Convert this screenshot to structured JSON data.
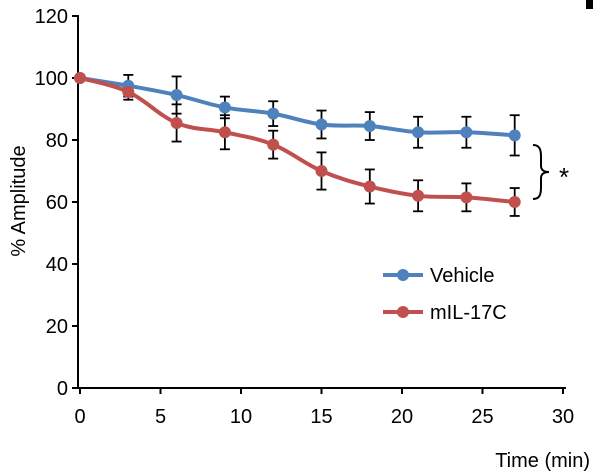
{
  "chart_data": {
    "type": "line",
    "title": "",
    "xlabel": "Time (min)",
    "ylabel": "% Amplitude",
    "xlim": [
      0,
      30
    ],
    "ylim": [
      0,
      120
    ],
    "xticks": [
      0,
      5,
      10,
      15,
      20,
      25,
      30
    ],
    "yticks": [
      0,
      20,
      40,
      60,
      80,
      100,
      120
    ],
    "grid": false,
    "legend_position": "center-right",
    "series": [
      {
        "name": "Vehicle",
        "color": "#4F81BD",
        "x": [
          0,
          3,
          6,
          9,
          12,
          15,
          18,
          21,
          24,
          27
        ],
        "y": [
          100,
          97.5,
          94.5,
          90.5,
          88.5,
          85,
          84.5,
          82.5,
          82.5,
          81.5
        ],
        "err": [
          0,
          3.5,
          6,
          3.5,
          4,
          4.5,
          4.5,
          5,
          5,
          6.5
        ]
      },
      {
        "name": "mIL-17C",
        "color": "#C0504D",
        "x": [
          0,
          3,
          6,
          9,
          12,
          15,
          18,
          21,
          24,
          27
        ],
        "y": [
          100,
          95.5,
          85.5,
          82.5,
          78.5,
          70,
          65,
          62,
          61.5,
          60
        ],
        "err": [
          0,
          2.5,
          6,
          5.5,
          4.5,
          6,
          5.5,
          5,
          4.5,
          4.5
        ]
      }
    ],
    "annotations": [
      {
        "text": "*",
        "between": [
          "Vehicle",
          "mIL-17C"
        ],
        "at_x": 27
      }
    ]
  }
}
